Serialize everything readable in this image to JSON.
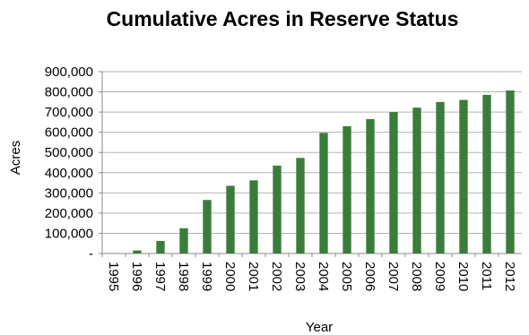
{
  "chart_data": {
    "type": "bar",
    "title": "Cumulative Acres in Reserve Status",
    "xlabel": "Year",
    "ylabel": "Acres",
    "categories": [
      "1995",
      "1996",
      "1997",
      "1998",
      "1999",
      "2000",
      "2001",
      "2002",
      "2003",
      "2004",
      "2005",
      "2006",
      "2007",
      "2008",
      "2009",
      "2010",
      "2011",
      "2012"
    ],
    "values": [
      0,
      15000,
      62000,
      125000,
      265000,
      335000,
      362000,
      435000,
      473000,
      597000,
      630000,
      665000,
      700000,
      722000,
      750000,
      760000,
      785000,
      807000
    ],
    "ylim": [
      0,
      900000
    ],
    "yticks": [
      0,
      100000,
      200000,
      300000,
      400000,
      500000,
      600000,
      700000,
      800000,
      900000
    ],
    "ytick_labels": [
      "-",
      "100,000",
      "200,000",
      "300,000",
      "400,000",
      "500,000",
      "600,000",
      "700,000",
      "800,000",
      "900,000"
    ],
    "grid": true,
    "bar_color": "#3a7d3a",
    "grid_color": "#b3b3b3",
    "axis_color": "#888888"
  }
}
